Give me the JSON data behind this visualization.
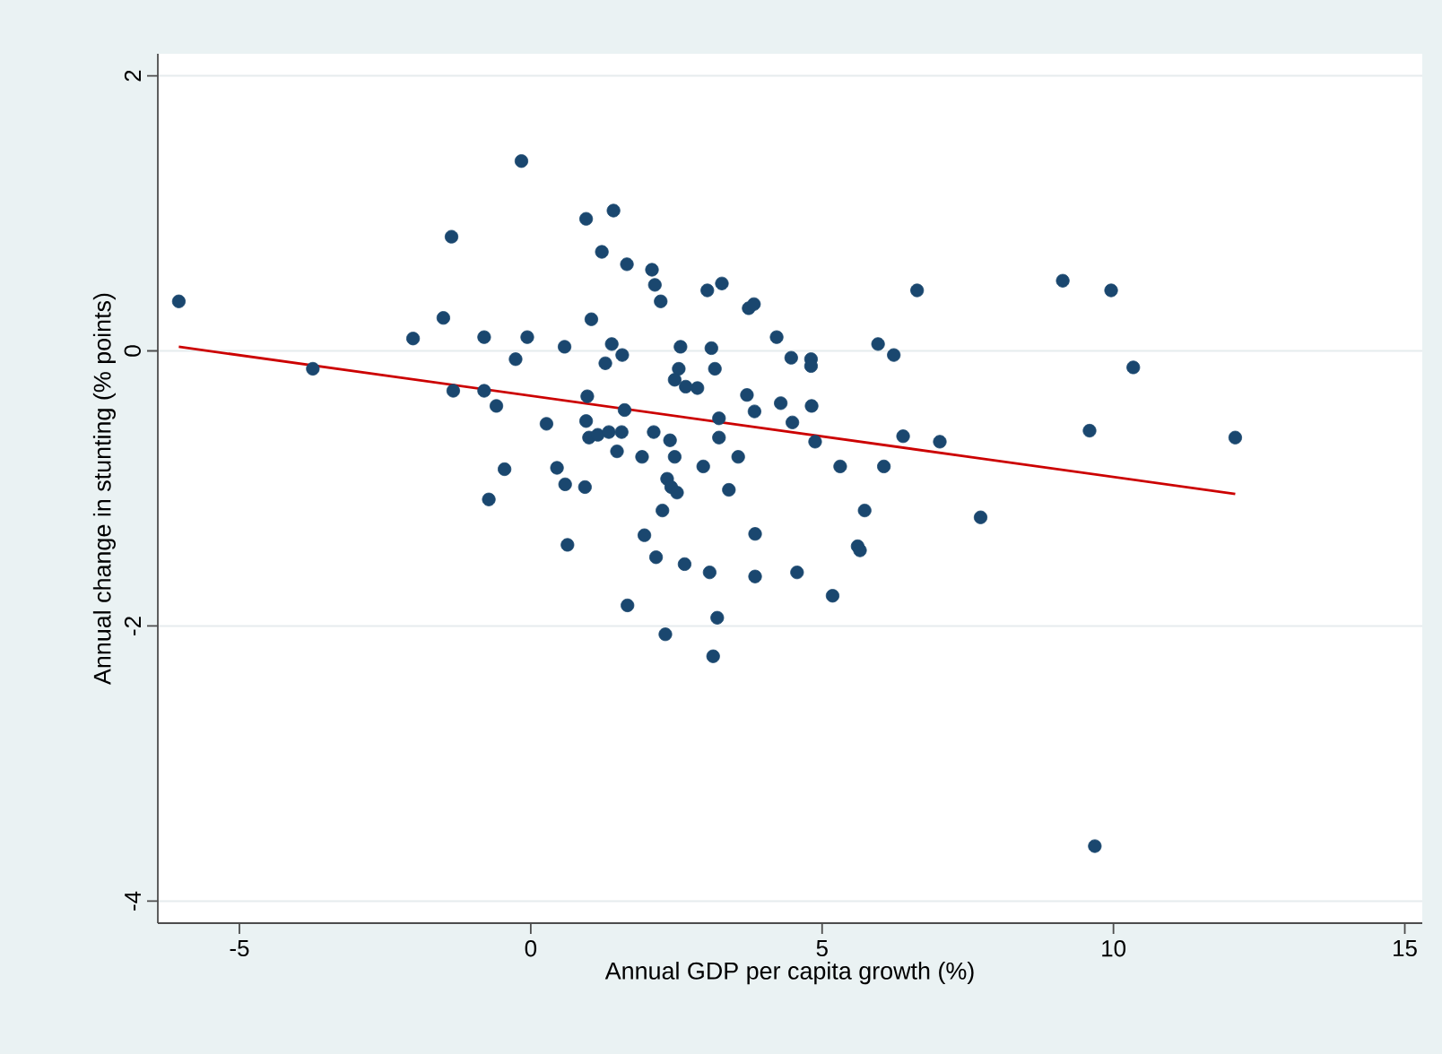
{
  "chart_data": {
    "type": "scatter",
    "xlabel": "Annual GDP per capita growth (%)",
    "ylabel": "Annual change in stunting (% points)",
    "xlim": [
      -6.4,
      15.3
    ],
    "ylim": [
      -4.16,
      2.16
    ],
    "xticks": [
      -5,
      0,
      5,
      10,
      15
    ],
    "yticks": [
      -4,
      -2,
      0,
      2
    ],
    "grid": "y",
    "series": [
      {
        "color": "#1a476f",
        "marker": "circle",
        "x": [
          -6.04,
          -0.16,
          -1.36,
          -1.5,
          -2.02,
          -0.8,
          -0.06,
          0.58,
          -0.26,
          -3.74,
          -1.33,
          -0.8,
          -0.59,
          0.27,
          -0.45,
          -0.72,
          0.45,
          0.59,
          0.63,
          0.95,
          1.42,
          1.22,
          1.65,
          2.08,
          2.13,
          2.23,
          3.03,
          3.28,
          3.74,
          3.83,
          1.04,
          1.39,
          1.57,
          1.28,
          2.57,
          3.1,
          3.16,
          2.54,
          2.47,
          2.66,
          2.86,
          4.22,
          4.47,
          4.81,
          4.81,
          5.96,
          6.23,
          6.63,
          3.71,
          3.84,
          4.29,
          4.82,
          4.49,
          0.97,
          1.61,
          0.95,
          1.0,
          1.15,
          1.34,
          1.56,
          2.11,
          1.48,
          1.91,
          2.39,
          2.47,
          3.23,
          3.23,
          3.56,
          2.96,
          4.88,
          5.31,
          6.06,
          6.39,
          7.02,
          0.93,
          2.34,
          2.41,
          2.51,
          3.4,
          2.26,
          5.73,
          7.72,
          1.95,
          3.85,
          5.61,
          5.65,
          2.15,
          2.64,
          3.07,
          3.85,
          4.57,
          5.18,
          1.66,
          3.2,
          2.31,
          3.13,
          9.13,
          9.96,
          10.34,
          9.59,
          12.09,
          9.68
        ],
        "values": [
          0.36,
          1.38,
          0.83,
          0.24,
          0.09,
          0.1,
          0.1,
          0.03,
          -0.06,
          -0.13,
          -0.29,
          -0.29,
          -0.4,
          -0.53,
          -0.86,
          -1.08,
          -0.85,
          -0.97,
          -1.41,
          0.96,
          1.02,
          0.72,
          0.63,
          0.59,
          0.48,
          0.36,
          0.44,
          0.49,
          0.31,
          0.34,
          0.23,
          0.05,
          -0.03,
          -0.09,
          0.03,
          0.02,
          -0.13,
          -0.13,
          -0.21,
          -0.26,
          -0.27,
          0.1,
          -0.05,
          -0.06,
          -0.11,
          0.05,
          -0.03,
          0.44,
          -0.32,
          -0.44,
          -0.38,
          -0.4,
          -0.52,
          -0.33,
          -0.43,
          -0.51,
          -0.63,
          -0.61,
          -0.59,
          -0.59,
          -0.59,
          -0.73,
          -0.77,
          -0.65,
          -0.77,
          -0.49,
          -0.63,
          -0.77,
          -0.84,
          -0.66,
          -0.84,
          -0.84,
          -0.62,
          -0.66,
          -0.99,
          -0.93,
          -0.99,
          -1.03,
          -1.01,
          -1.16,
          -1.16,
          -1.21,
          -1.34,
          -1.33,
          -1.42,
          -1.45,
          -1.5,
          -1.55,
          -1.61,
          -1.64,
          -1.61,
          -1.78,
          -1.85,
          -1.94,
          -2.06,
          -2.22,
          0.51,
          0.44,
          -0.12,
          -0.58,
          -0.63,
          -3.6
        ]
      },
      {
        "type": "line",
        "marker": "none",
        "color": "#cc0000",
        "x": [
          -6.04,
          12.09
        ],
        "values": [
          0.03,
          -1.04
        ]
      }
    ]
  }
}
